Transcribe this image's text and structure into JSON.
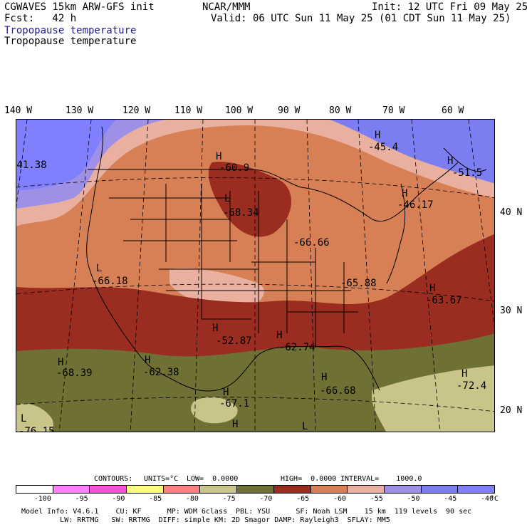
{
  "header": {
    "model": "CGWAVES 15km ARW-GFS init",
    "forecast": "Fcst:   42 h",
    "org": "NCAR/MMM",
    "init": "Init: 12 UTC Fri 09 May 25",
    "valid": "Valid: 06 UTC Sun 11 May 25 (01 CDT Sun 11 May 25)",
    "field_title_1": "Tropopause temperature",
    "field_title_2": "Tropopause temperature"
  },
  "longitude_labels": [
    "140 W",
    "130 W",
    "120 W",
    "110 W",
    "100 W",
    "90 W",
    "80 W",
    "70 W",
    "60 W"
  ],
  "latitude_labels": [
    "40 N",
    "30 N",
    "20 N"
  ],
  "map_annotations": [
    {
      "type": "H",
      "value": "-45.4"
    },
    {
      "type": "H",
      "value": "-60.9"
    },
    {
      "type": "",
      "value": "-41.38"
    },
    {
      "type": "H",
      "value": "-51.5"
    },
    {
      "type": "L",
      "value": "-68.34"
    },
    {
      "type": "H",
      "value": "-46.17"
    },
    {
      "type": "",
      "value": "-66.66"
    },
    {
      "type": "L",
      "value": "-66.18"
    },
    {
      "type": "",
      "value": "-65.88"
    },
    {
      "type": "H",
      "value": "-63.67"
    },
    {
      "type": "H",
      "value": "-52.87"
    },
    {
      "type": "H",
      "value": "-62.74"
    },
    {
      "type": "H",
      "value": "-68.39"
    },
    {
      "type": "H",
      "value": "-62.38"
    },
    {
      "type": "H",
      "value": "-66.68"
    },
    {
      "type": "H",
      "value": "-72.4"
    },
    {
      "type": "H",
      "value": "-67.1"
    },
    {
      "type": "L",
      "value": "-76.15"
    },
    {
      "type": "H",
      "value": ""
    },
    {
      "type": "L",
      "value": ""
    }
  ],
  "contours_info": {
    "contours": "CONTOURS:",
    "units": "UNITS=°C",
    "low": "LOW=  0.0000",
    "high": "HIGH=  0.0000",
    "interval": "INTERVAL=    1000.0"
  },
  "colorbar": {
    "colors": [
      "#ffffff",
      "#ff7fff",
      "#ff4fd8",
      "#ffff7f",
      "#ff8080",
      "#c9c48a",
      "#6f7034",
      "#9b2d20",
      "#d78055",
      "#e9b0a0",
      "#9e90e6",
      "#7d7df2",
      "#8080ff"
    ],
    "ticks": [
      "-100",
      "-95",
      "-90",
      "-85",
      "-80",
      "-75",
      "-70",
      "-65",
      "-60",
      "-55",
      "-50",
      "-45",
      "-40"
    ],
    "unit": "°C"
  },
  "model_info": {
    "line1": "Model Info: V4.6.1    CU: KF      MP: WDM 6class  PBL: YSU      SF: Noah LSM    15 km  119 levels  90 sec",
    "line2": "         LW: RRTMG   SW: RRTMG  DIFF: simple KM: 2D Smagor DAMP: Rayleigh3  SFLAY: MM5"
  }
}
